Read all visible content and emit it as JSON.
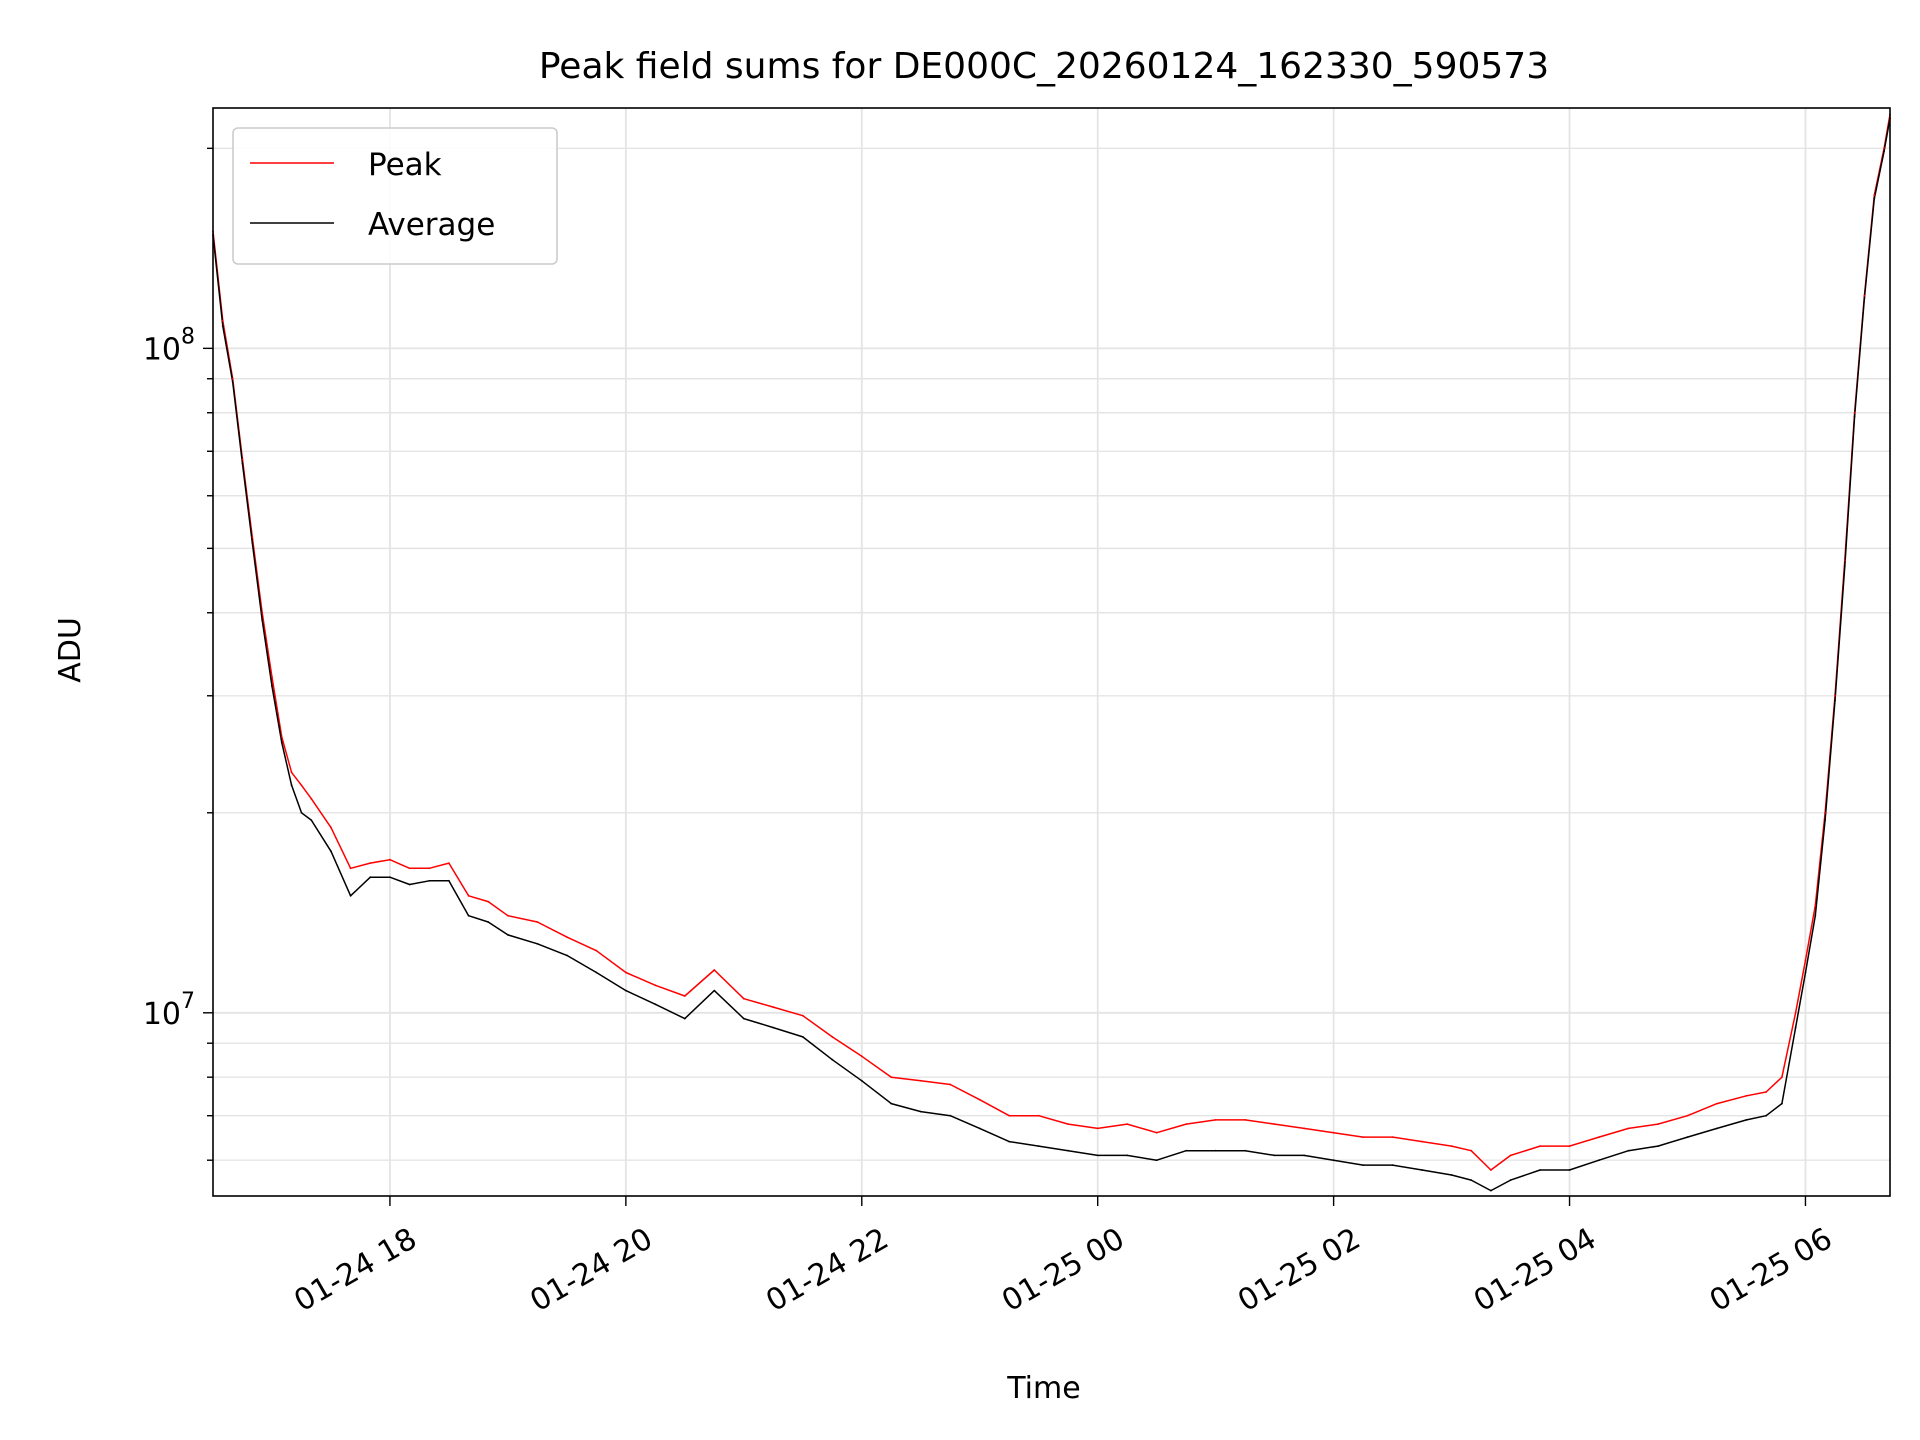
{
  "chart_data": {
    "type": "line",
    "title": "Peak field sums for DE000C_20260124_162330_590573",
    "xlabel": "Time",
    "ylabel": "ADU",
    "y_scale": "log",
    "grid": "on",
    "legend_position": "top-left",
    "xlim": [
      "2026-01-24T16:30",
      "2026-01-25T06:43"
    ],
    "ylim": [
      5300000,
      230000000
    ],
    "x_ticks": [
      {
        "label": "01-24 18",
        "t": "2026-01-24T18:00"
      },
      {
        "label": "01-24 20",
        "t": "2026-01-24T20:00"
      },
      {
        "label": "01-24 22",
        "t": "2026-01-24T22:00"
      },
      {
        "label": "01-25 00",
        "t": "2026-01-25T00:00"
      },
      {
        "label": "01-25 02",
        "t": "2026-01-25T02:00"
      },
      {
        "label": "01-25 04",
        "t": "2026-01-25T04:00"
      },
      {
        "label": "01-25 06",
        "t": "2026-01-25T06:00"
      }
    ],
    "y_ticks": [
      {
        "mantissa": "10",
        "exponent": "7",
        "value": 10000000
      },
      {
        "mantissa": "10",
        "exponent": "8",
        "value": 100000000
      }
    ],
    "x": [
      "2026-01-24T16:30",
      "2026-01-24T16:35",
      "2026-01-24T16:40",
      "2026-01-24T16:45",
      "2026-01-24T16:50",
      "2026-01-24T16:55",
      "2026-01-24T17:00",
      "2026-01-24T17:05",
      "2026-01-24T17:10",
      "2026-01-24T17:15",
      "2026-01-24T17:20",
      "2026-01-24T17:30",
      "2026-01-24T17:40",
      "2026-01-24T17:50",
      "2026-01-24T18:00",
      "2026-01-24T18:10",
      "2026-01-24T18:20",
      "2026-01-24T18:30",
      "2026-01-24T18:40",
      "2026-01-24T18:50",
      "2026-01-24T19:00",
      "2026-01-24T19:15",
      "2026-01-24T19:30",
      "2026-01-24T19:45",
      "2026-01-24T20:00",
      "2026-01-24T20:15",
      "2026-01-24T20:30",
      "2026-01-24T20:45",
      "2026-01-24T21:00",
      "2026-01-24T21:15",
      "2026-01-24T21:30",
      "2026-01-24T21:45",
      "2026-01-24T22:00",
      "2026-01-24T22:15",
      "2026-01-24T22:30",
      "2026-01-24T22:45",
      "2026-01-24T23:00",
      "2026-01-24T23:15",
      "2026-01-24T23:30",
      "2026-01-24T23:45",
      "2026-01-25T00:00",
      "2026-01-25T00:15",
      "2026-01-25T00:30",
      "2026-01-25T00:45",
      "2026-01-25T01:00",
      "2026-01-25T01:15",
      "2026-01-25T01:30",
      "2026-01-25T01:45",
      "2026-01-25T02:00",
      "2026-01-25T02:15",
      "2026-01-25T02:30",
      "2026-01-25T02:45",
      "2026-01-25T03:00",
      "2026-01-25T03:10",
      "2026-01-25T03:20",
      "2026-01-25T03:30",
      "2026-01-25T03:45",
      "2026-01-25T04:00",
      "2026-01-25T04:15",
      "2026-01-25T04:30",
      "2026-01-25T04:45",
      "2026-01-25T05:00",
      "2026-01-25T05:15",
      "2026-01-25T05:30",
      "2026-01-25T05:40",
      "2026-01-25T05:48",
      "2026-01-25T05:55",
      "2026-01-25T06:00",
      "2026-01-25T06:05",
      "2026-01-25T06:10",
      "2026-01-25T06:15",
      "2026-01-25T06:20",
      "2026-01-25T06:25",
      "2026-01-25T06:30",
      "2026-01-25T06:35",
      "2026-01-25T06:40",
      "2026-01-25T06:43"
    ],
    "series": [
      {
        "name": "Peak",
        "color": "#ff0000",
        "values": [
          150000000,
          110000000,
          90000000,
          68000000,
          52000000,
          40000000,
          32000000,
          26000000,
          23000000,
          22000000,
          21000000,
          19000000,
          16500000,
          16800000,
          17000000,
          16500000,
          16500000,
          16800000,
          15000000,
          14700000,
          14000000,
          13700000,
          13000000,
          12400000,
          11500000,
          11000000,
          10600000,
          11600000,
          10500000,
          10200000,
          9900000,
          9200000,
          8600000,
          8000000,
          7900000,
          7800000,
          7400000,
          7000000,
          7000000,
          6800000,
          6700000,
          6800000,
          6600000,
          6800000,
          6900000,
          6900000,
          6800000,
          6700000,
          6600000,
          6500000,
          6500000,
          6400000,
          6300000,
          6200000,
          5800000,
          6100000,
          6300000,
          6300000,
          6500000,
          6700000,
          6800000,
          7000000,
          7300000,
          7500000,
          7600000,
          8000000,
          10000000,
          12000000,
          14500000,
          20000000,
          30000000,
          48000000,
          80000000,
          120000000,
          170000000,
          200000000,
          225000000
        ]
      },
      {
        "name": "Average",
        "color": "#000000",
        "values": [
          148000000,
          108000000,
          89000000,
          67000000,
          51000000,
          39000000,
          31000000,
          25500000,
          22000000,
          20000000,
          19500000,
          17500000,
          15000000,
          16000000,
          16000000,
          15600000,
          15800000,
          15800000,
          14000000,
          13700000,
          13100000,
          12700000,
          12200000,
          11500000,
          10800000,
          10300000,
          9800000,
          10800000,
          9800000,
          9500000,
          9200000,
          8500000,
          7900000,
          7300000,
          7100000,
          7000000,
          6700000,
          6400000,
          6300000,
          6200000,
          6100000,
          6100000,
          6000000,
          6200000,
          6200000,
          6200000,
          6100000,
          6100000,
          6000000,
          5900000,
          5900000,
          5800000,
          5700000,
          5600000,
          5400000,
          5600000,
          5800000,
          5800000,
          6000000,
          6200000,
          6300000,
          6500000,
          6700000,
          6900000,
          7000000,
          7300000,
          9500000,
          11500000,
          14000000,
          19500000,
          29500000,
          47000000,
          79000000,
          119000000,
          168000000,
          198000000,
          222000000
        ]
      }
    ]
  }
}
